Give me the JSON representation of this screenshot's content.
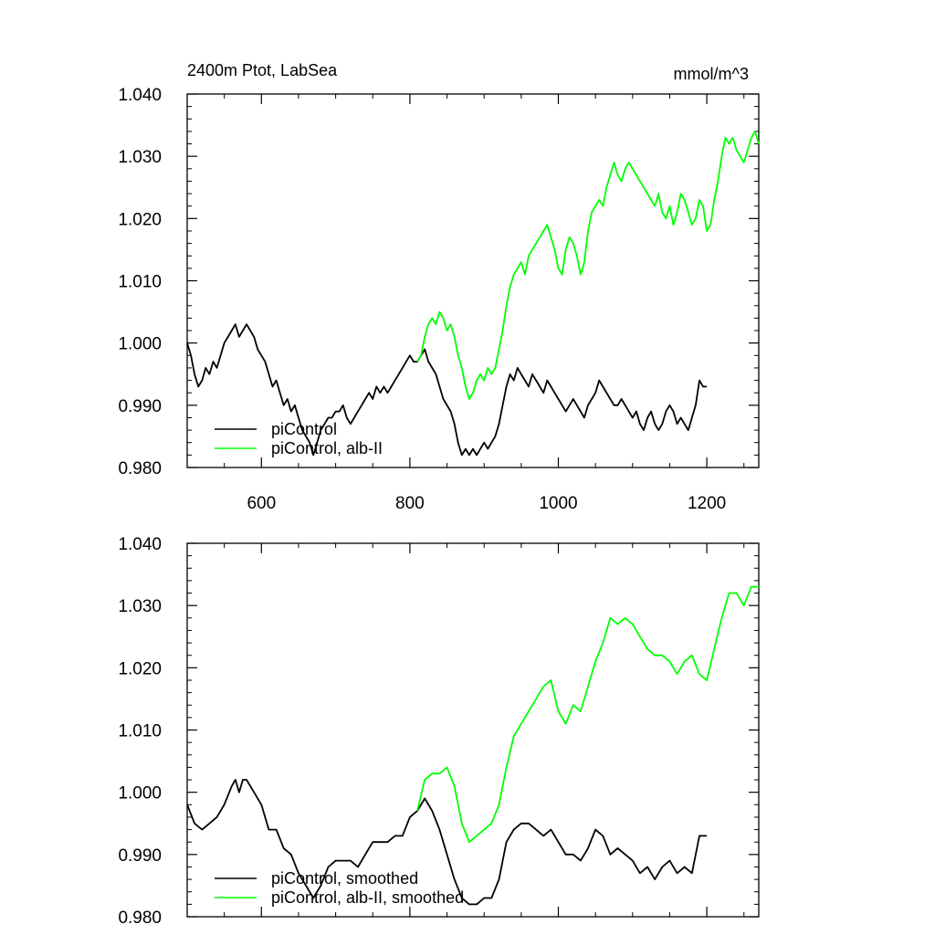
{
  "chart_data": [
    {
      "type": "line",
      "title": "2400m Ptot, LabSea",
      "units": "mmol/m^3",
      "xlim": [
        500,
        1270
      ],
      "ylim": [
        0.98,
        1.04
      ],
      "x_ticks": [
        600,
        800,
        1000,
        1200
      ],
      "x_tick_labels": [
        "600",
        "800",
        "1000",
        "1200"
      ],
      "y_ticks": [
        0.98,
        0.99,
        1.0,
        1.01,
        1.02,
        1.03,
        1.04
      ],
      "y_tick_labels": [
        "0.980",
        "0.990",
        "1.000",
        "1.010",
        "1.020",
        "1.030",
        "1.040"
      ],
      "legend": [
        "piControl",
        "piControl, alb-II"
      ],
      "legend_position": "bottom-left",
      "series": [
        {
          "name": "piControl",
          "color": "#000000",
          "x": [
            500,
            505,
            510,
            515,
            520,
            525,
            530,
            535,
            540,
            545,
            550,
            555,
            560,
            565,
            570,
            575,
            580,
            585,
            590,
            595,
            600,
            605,
            610,
            615,
            620,
            625,
            630,
            635,
            640,
            645,
            650,
            655,
            660,
            665,
            670,
            675,
            680,
            685,
            690,
            695,
            700,
            705,
            710,
            715,
            720,
            725,
            730,
            735,
            740,
            745,
            750,
            755,
            760,
            765,
            770,
            775,
            780,
            785,
            790,
            795,
            800,
            805,
            810,
            815,
            820,
            825,
            830,
            835,
            840,
            845,
            850,
            855,
            860,
            865,
            870,
            875,
            880,
            885,
            890,
            895,
            900,
            905,
            910,
            915,
            920,
            925,
            930,
            935,
            940,
            945,
            950,
            955,
            960,
            965,
            970,
            975,
            980,
            985,
            990,
            995,
            1000,
            1005,
            1010,
            1015,
            1020,
            1025,
            1030,
            1035,
            1040,
            1045,
            1050,
            1055,
            1060,
            1065,
            1070,
            1075,
            1080,
            1085,
            1090,
            1095,
            1100,
            1105,
            1110,
            1115,
            1120,
            1125,
            1130,
            1135,
            1140,
            1145,
            1150,
            1155,
            1160,
            1165,
            1170,
            1175,
            1180,
            1185,
            1190,
            1195,
            1200
          ],
          "values": [
            1.0,
            0.998,
            0.995,
            0.993,
            0.994,
            0.996,
            0.995,
            0.997,
            0.996,
            0.998,
            1.0,
            1.001,
            1.002,
            1.003,
            1.001,
            1.002,
            1.003,
            1.002,
            1.001,
            0.999,
            0.998,
            0.997,
            0.995,
            0.993,
            0.994,
            0.992,
            0.99,
            0.991,
            0.989,
            0.99,
            0.988,
            0.986,
            0.985,
            0.984,
            0.982,
            0.984,
            0.986,
            0.987,
            0.988,
            0.988,
            0.989,
            0.989,
            0.99,
            0.988,
            0.987,
            0.988,
            0.989,
            0.99,
            0.991,
            0.992,
            0.991,
            0.993,
            0.992,
            0.993,
            0.992,
            0.993,
            0.994,
            0.995,
            0.996,
            0.997,
            0.998,
            0.997,
            0.997,
            0.998,
            0.999,
            0.997,
            0.996,
            0.995,
            0.993,
            0.991,
            0.99,
            0.989,
            0.987,
            0.984,
            0.982,
            0.983,
            0.982,
            0.983,
            0.982,
            0.983,
            0.984,
            0.983,
            0.984,
            0.985,
            0.987,
            0.99,
            0.993,
            0.995,
            0.994,
            0.996,
            0.995,
            0.994,
            0.993,
            0.995,
            0.994,
            0.993,
            0.992,
            0.994,
            0.993,
            0.992,
            0.991,
            0.99,
            0.989,
            0.99,
            0.991,
            0.99,
            0.989,
            0.988,
            0.99,
            0.991,
            0.992,
            0.994,
            0.993,
            0.992,
            0.991,
            0.99,
            0.99,
            0.991,
            0.99,
            0.989,
            0.988,
            0.989,
            0.987,
            0.986,
            0.988,
            0.989,
            0.987,
            0.986,
            0.987,
            0.989,
            0.99,
            0.989,
            0.987,
            0.988,
            0.987,
            0.986,
            0.988,
            0.99,
            0.994,
            0.993,
            0.993
          ]
        },
        {
          "name": "piControl, alb-II",
          "color": "#00ff00",
          "x": [
            810,
            815,
            820,
            825,
            830,
            835,
            840,
            845,
            850,
            855,
            860,
            865,
            870,
            875,
            880,
            885,
            890,
            895,
            900,
            905,
            910,
            915,
            920,
            925,
            930,
            935,
            940,
            945,
            950,
            955,
            960,
            965,
            970,
            975,
            980,
            985,
            990,
            995,
            1000,
            1005,
            1010,
            1015,
            1020,
            1025,
            1030,
            1035,
            1040,
            1045,
            1050,
            1055,
            1060,
            1065,
            1070,
            1075,
            1080,
            1085,
            1090,
            1095,
            1100,
            1105,
            1110,
            1115,
            1120,
            1125,
            1130,
            1135,
            1140,
            1145,
            1150,
            1155,
            1160,
            1165,
            1170,
            1175,
            1180,
            1185,
            1190,
            1195,
            1200,
            1205,
            1210,
            1215,
            1220,
            1225,
            1230,
            1235,
            1240,
            1245,
            1250,
            1255,
            1260,
            1265,
            1270
          ],
          "values": [
            0.997,
            0.998,
            1.001,
            1.003,
            1.004,
            1.003,
            1.005,
            1.004,
            1.002,
            1.003,
            1.001,
            0.998,
            0.996,
            0.993,
            0.991,
            0.992,
            0.994,
            0.995,
            0.994,
            0.996,
            0.995,
            0.996,
            0.999,
            1.002,
            1.006,
            1.009,
            1.011,
            1.012,
            1.013,
            1.011,
            1.014,
            1.015,
            1.016,
            1.017,
            1.018,
            1.019,
            1.017,
            1.015,
            1.012,
            1.011,
            1.015,
            1.017,
            1.016,
            1.014,
            1.011,
            1.013,
            1.018,
            1.021,
            1.022,
            1.023,
            1.022,
            1.025,
            1.027,
            1.029,
            1.027,
            1.026,
            1.028,
            1.029,
            1.028,
            1.027,
            1.026,
            1.025,
            1.024,
            1.023,
            1.022,
            1.024,
            1.021,
            1.02,
            1.022,
            1.019,
            1.021,
            1.024,
            1.023,
            1.021,
            1.019,
            1.02,
            1.023,
            1.022,
            1.018,
            1.019,
            1.023,
            1.026,
            1.03,
            1.033,
            1.032,
            1.033,
            1.031,
            1.03,
            1.029,
            1.031,
            1.033,
            1.034,
            1.032
          ]
        }
      ]
    },
    {
      "type": "line",
      "title": "",
      "units": "",
      "xlim": [
        500,
        1270
      ],
      "ylim": [
        0.98,
        1.04
      ],
      "x_ticks": [
        600,
        800,
        1000,
        1200
      ],
      "y_ticks": [
        0.98,
        0.99,
        1.0,
        1.01,
        1.02,
        1.03,
        1.04
      ],
      "y_tick_labels": [
        "0.980",
        "0.990",
        "1.000",
        "1.010",
        "1.020",
        "1.030",
        "1.040"
      ],
      "legend": [
        "piControl, smoothed",
        "piControl, alb-II, smoothed"
      ],
      "legend_position": "bottom-left",
      "series": [
        {
          "name": "piControl, smoothed",
          "color": "#000000",
          "x": [
            500,
            510,
            520,
            530,
            540,
            550,
            560,
            565,
            570,
            575,
            580,
            590,
            600,
            610,
            620,
            630,
            640,
            650,
            660,
            670,
            680,
            690,
            700,
            710,
            720,
            730,
            740,
            750,
            760,
            770,
            780,
            790,
            800,
            810,
            820,
            830,
            840,
            850,
            860,
            870,
            880,
            890,
            900,
            910,
            920,
            930,
            940,
            950,
            960,
            970,
            980,
            990,
            1000,
            1010,
            1020,
            1030,
            1040,
            1050,
            1060,
            1070,
            1080,
            1090,
            1100,
            1110,
            1120,
            1130,
            1140,
            1150,
            1160,
            1170,
            1180,
            1190,
            1200
          ],
          "values": [
            0.998,
            0.995,
            0.994,
            0.995,
            0.996,
            0.998,
            1.001,
            1.002,
            1.0,
            1.002,
            1.002,
            1.0,
            0.998,
            0.994,
            0.994,
            0.991,
            0.99,
            0.987,
            0.985,
            0.983,
            0.985,
            0.988,
            0.989,
            0.989,
            0.989,
            0.988,
            0.99,
            0.992,
            0.992,
            0.992,
            0.993,
            0.993,
            0.996,
            0.997,
            0.999,
            0.997,
            0.994,
            0.99,
            0.986,
            0.983,
            0.982,
            0.982,
            0.983,
            0.983,
            0.986,
            0.992,
            0.994,
            0.995,
            0.995,
            0.994,
            0.993,
            0.994,
            0.992,
            0.99,
            0.99,
            0.989,
            0.991,
            0.994,
            0.993,
            0.99,
            0.991,
            0.99,
            0.989,
            0.987,
            0.988,
            0.986,
            0.988,
            0.989,
            0.987,
            0.988,
            0.987,
            0.993,
            0.993
          ]
        },
        {
          "name": "piControl, alb-II, smoothed",
          "color": "#00ff00",
          "x": [
            810,
            820,
            830,
            840,
            850,
            860,
            870,
            880,
            890,
            900,
            910,
            920,
            930,
            940,
            950,
            960,
            970,
            980,
            990,
            1000,
            1010,
            1020,
            1030,
            1040,
            1050,
            1060,
            1070,
            1080,
            1090,
            1100,
            1110,
            1120,
            1130,
            1140,
            1150,
            1160,
            1170,
            1180,
            1190,
            1200,
            1210,
            1220,
            1230,
            1240,
            1250,
            1260,
            1270
          ],
          "values": [
            0.997,
            1.002,
            1.003,
            1.003,
            1.004,
            1.001,
            0.995,
            0.992,
            0.993,
            0.994,
            0.995,
            0.998,
            1.004,
            1.009,
            1.011,
            1.013,
            1.015,
            1.017,
            1.018,
            1.013,
            1.011,
            1.014,
            1.013,
            1.017,
            1.021,
            1.024,
            1.028,
            1.027,
            1.028,
            1.027,
            1.025,
            1.023,
            1.022,
            1.022,
            1.021,
            1.019,
            1.021,
            1.022,
            1.019,
            1.018,
            1.023,
            1.028,
            1.032,
            1.032,
            1.03,
            1.033,
            1.033
          ]
        }
      ]
    }
  ]
}
